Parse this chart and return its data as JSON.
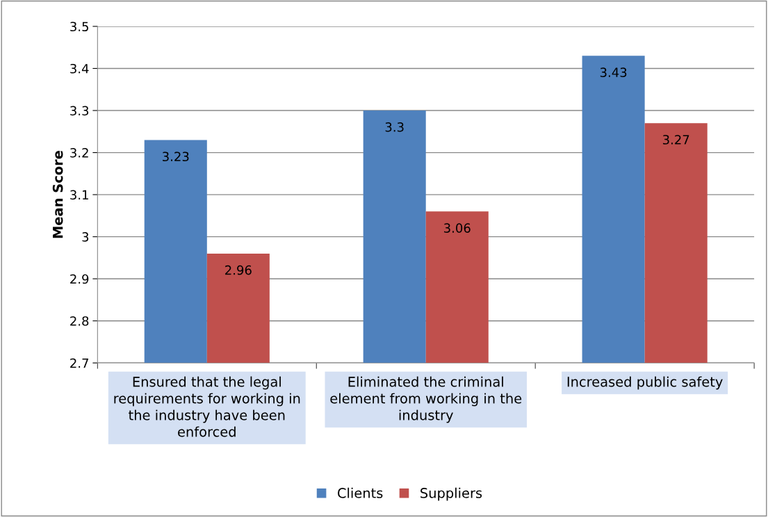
{
  "chart_data": {
    "type": "bar",
    "ylabel": "Mean Score",
    "categories": [
      "Ensured that the legal\nrequirements for working in\nthe industry have been\nenforced",
      "Eliminated the criminal\nelement from working in the\nindustry",
      "Increased public safety"
    ],
    "series": [
      {
        "name": "Clients",
        "color": "#4f81bd",
        "values": [
          3.23,
          3.3,
          3.43
        ]
      },
      {
        "name": "Suppliers",
        "color": "#c0504d",
        "values": [
          2.96,
          3.06,
          3.27
        ]
      }
    ],
    "ylim": [
      2.7,
      3.5
    ],
    "yticks": [
      2.7,
      2.8,
      2.9,
      3,
      3.1,
      3.2,
      3.3,
      3.4,
      3.5
    ],
    "grid": "y",
    "legend": "bottom",
    "data_labels": true
  }
}
